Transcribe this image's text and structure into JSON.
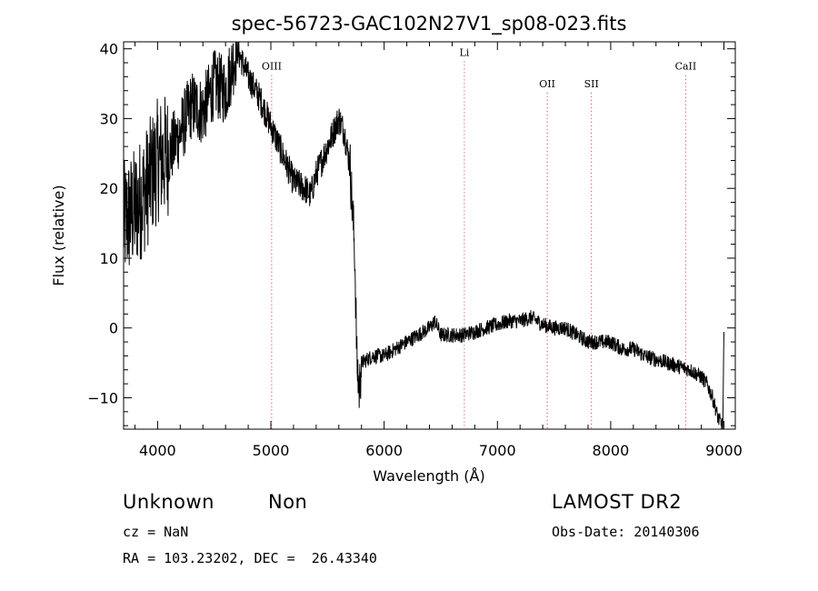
{
  "chart_data": {
    "type": "line",
    "title": "spec-56723-GAC102N27V1_sp08-023.fits",
    "xlabel": "Wavelength (Å)",
    "ylabel": "Flux (relative)",
    "xlim": [
      3700,
      9100
    ],
    "ylim": [
      -14.5,
      41
    ],
    "xticks": [
      4000,
      5000,
      6000,
      7000,
      8000,
      9000
    ],
    "yticks": [
      -10,
      0,
      10,
      20,
      30,
      40
    ],
    "xtick_labels": [
      "4000",
      "5000",
      "6000",
      "7000",
      "8000",
      "9000"
    ],
    "ytick_labels": [
      "−10",
      "0",
      "10",
      "20",
      "30",
      "40"
    ],
    "grid": false,
    "line_color": "#000000",
    "marker_line_color": "#d62728",
    "spectrum_envelope": {
      "x": [
        3700,
        3800,
        3900,
        4000,
        4100,
        4200,
        4300,
        4400,
        4500,
        4600,
        4650,
        4700,
        4800,
        4900,
        5000,
        5100,
        5200,
        5300,
        5350,
        5400,
        5500,
        5600,
        5650,
        5700,
        5740,
        5760,
        5780,
        5800,
        5900,
        6000,
        6100,
        6200,
        6300,
        6400,
        6450,
        6500,
        6600,
        6700,
        6800,
        6900,
        7000,
        7100,
        7200,
        7300,
        7400,
        7500,
        7600,
        7700,
        7800,
        7900,
        8000,
        8100,
        8200,
        8300,
        8400,
        8500,
        8600,
        8700,
        8800,
        8850,
        8900,
        8950,
        8990,
        9000
      ],
      "y": [
        15,
        17,
        20,
        24,
        25,
        28,
        32,
        31,
        35,
        34,
        37,
        40,
        36,
        33,
        29,
        25,
        21,
        20,
        19,
        22,
        26,
        30,
        28,
        23,
        11,
        -5,
        -9,
        -5,
        -4,
        -4,
        -3,
        -2,
        -1,
        0,
        1,
        -1,
        -1,
        -1,
        -0.5,
        0,
        0.5,
        1,
        1,
        1.5,
        0.5,
        0,
        0,
        -1,
        -2,
        -2,
        -2,
        -3,
        -3,
        -4,
        -4.5,
        -5,
        -5.5,
        -6,
        -7,
        -8,
        -10,
        -13,
        -14,
        -1
      ]
    },
    "markers": [
      {
        "label": "OIII",
        "x": 5007,
        "label_y": 37
      },
      {
        "label": "Li",
        "x": 6708,
        "label_y": 39
      },
      {
        "label": "OII",
        "x": 7440,
        "label_y": 34.5
      },
      {
        "label": "SII",
        "x": 7830,
        "label_y": 34.5
      },
      {
        "label": "CaII",
        "x": 8662,
        "label_y": 37
      }
    ]
  },
  "info": {
    "class": "Unknown",
    "subclass": "Non",
    "survey": "LAMOST DR2",
    "cz": "cz = NaN",
    "obs_date": "Obs-Date: 20140306",
    "coords": "RA = 103.23202, DEC =  26.43340"
  }
}
